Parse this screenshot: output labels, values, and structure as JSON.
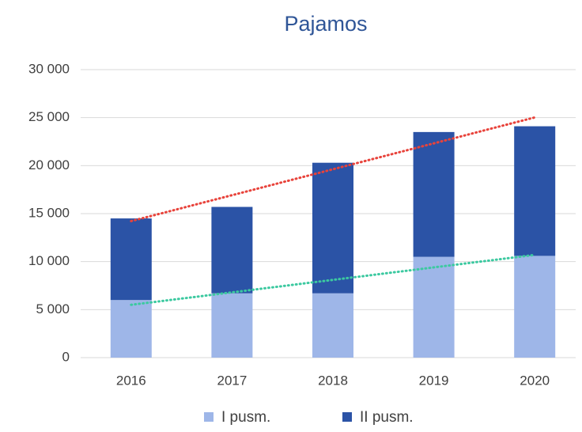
{
  "chart_data": {
    "type": "stacked_bar",
    "title": "Pajamos",
    "categories": [
      "2016",
      "2017",
      "2018",
      "2019",
      "2020"
    ],
    "series": [
      {
        "name": "I pusm.",
        "color": "#9eb6e8",
        "values": [
          6000,
          6700,
          6700,
          10500,
          10600
        ],
        "trendline_color": "#3cc9a0"
      },
      {
        "name": "II pusm.",
        "color": "#2b53a6",
        "values": [
          8500,
          9000,
          13600,
          13000,
          13500
        ],
        "trendline_color": "#e8433b"
      }
    ],
    "ylim": [
      0,
      30000
    ],
    "yticks": [
      0,
      {
        "value": 5000,
        "label": "5 000"
      },
      {
        "value": 10000,
        "label": "10 000"
      },
      {
        "value": 15000,
        "label": "15 000"
      },
      {
        "value": 20000,
        "label": "20 000"
      },
      {
        "value": 25000,
        "label": "25 000"
      },
      {
        "value": 30000,
        "label": "30 000"
      }
    ],
    "grid": true,
    "legend": "bottom"
  }
}
